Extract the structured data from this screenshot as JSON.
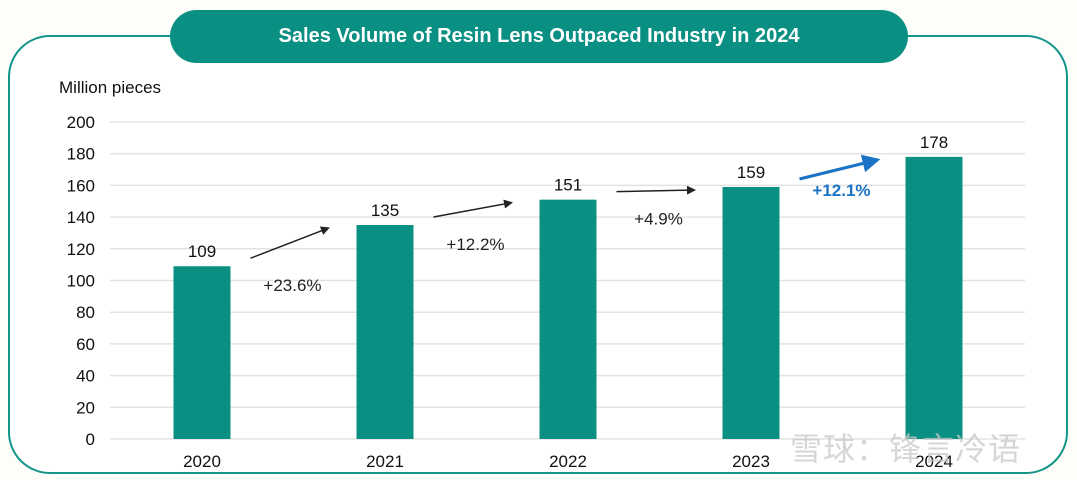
{
  "chart_data": {
    "type": "bar",
    "title": "Sales Volume of Resin Lens Outpaced Industry in 2024",
    "ylabel": "Million pieces",
    "xlabel": "",
    "categories": [
      "2020",
      "2021",
      "2022",
      "2023",
      "2024"
    ],
    "values": [
      109,
      135,
      151,
      159,
      178
    ],
    "ylim": [
      0,
      200
    ],
    "yticks": [
      0,
      20,
      40,
      60,
      80,
      100,
      120,
      140,
      160,
      180,
      200
    ],
    "grid": true,
    "bar_color": "#0a9082",
    "growth_annotations": [
      {
        "from": "2020",
        "to": "2021",
        "label": "+23.6%",
        "color": "#222222",
        "highlight": false
      },
      {
        "from": "2021",
        "to": "2022",
        "label": "+12.2%",
        "color": "#222222",
        "highlight": false
      },
      {
        "from": "2022",
        "to": "2023",
        "label": "+4.9%",
        "color": "#222222",
        "highlight": false
      },
      {
        "from": "2023",
        "to": "2024",
        "label": "+12.1%",
        "color": "#1a73c4",
        "highlight": true
      }
    ]
  },
  "watermark": "雪球：锋言冷语"
}
